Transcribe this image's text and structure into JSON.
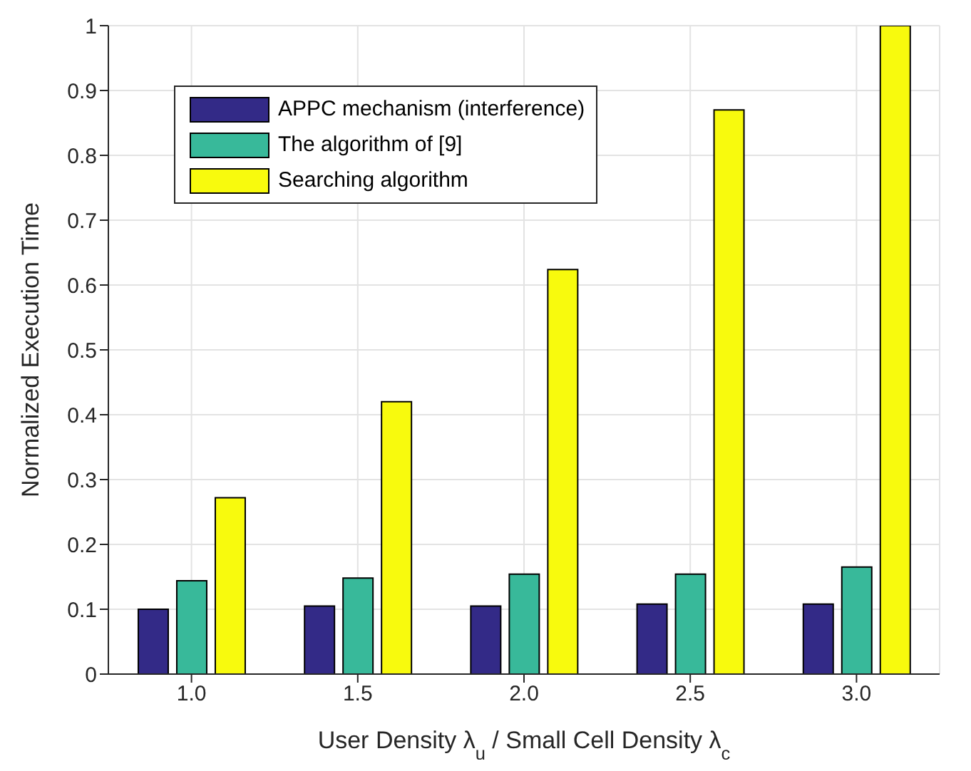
{
  "chart_data": {
    "type": "bar",
    "xlabel": "User Density λ$_{u}$ / Small Cell Density λ$_{c}$",
    "ylabel": "Normalized Execution Time",
    "categories": [
      "1.0",
      "1.5",
      "2.0",
      "2.5",
      "3.0"
    ],
    "series": [
      {
        "name": "APPC mechanism (interference)",
        "color": "#332a87",
        "values": [
          0.1,
          0.105,
          0.105,
          0.108,
          0.108
        ]
      },
      {
        "name": "The algorithm of [9]",
        "color": "#38b99a",
        "values": [
          0.144,
          0.148,
          0.154,
          0.154,
          0.165
        ]
      },
      {
        "name": "Searching algorithm",
        "color": "#f8fa0d",
        "values": [
          0.272,
          0.42,
          0.624,
          0.87,
          1.0
        ]
      }
    ],
    "ylim": [
      0,
      1
    ],
    "yticks": [
      0,
      0.1,
      0.2,
      0.3,
      0.4,
      0.5,
      0.6,
      0.7,
      0.8,
      0.9,
      1
    ],
    "grid": true,
    "legend": "top left"
  }
}
